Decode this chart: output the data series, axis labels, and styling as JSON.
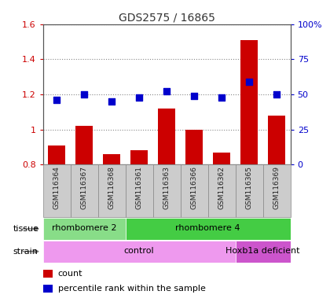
{
  "title": "GDS2575 / 16865",
  "samples": [
    "GSM116364",
    "GSM116367",
    "GSM116368",
    "GSM116361",
    "GSM116363",
    "GSM116366",
    "GSM116362",
    "GSM116365",
    "GSM116369"
  ],
  "counts": [
    0.91,
    1.02,
    0.86,
    0.88,
    1.12,
    1.0,
    0.87,
    1.51,
    1.08
  ],
  "percentile_left": [
    1.17,
    1.2,
    1.16,
    1.18,
    1.22,
    1.19,
    1.18,
    1.27,
    1.2
  ],
  "ylim_left": [
    0.8,
    1.6
  ],
  "ylim_right": [
    0,
    100
  ],
  "yticks_left": [
    0.8,
    1.0,
    1.2,
    1.4,
    1.6
  ],
  "ytick_labels_left": [
    "0.8",
    "1",
    "1.2",
    "1.4",
    "1.6"
  ],
  "yticks_right": [
    0,
    25,
    50,
    75,
    100
  ],
  "ytick_labels_right": [
    "0",
    "25",
    "50",
    "75",
    "100%"
  ],
  "bar_color": "#cc0000",
  "dot_color": "#0000cc",
  "tissue_labels": [
    {
      "text": "rhombomere 2",
      "start": 0,
      "end": 3,
      "color": "#88dd88"
    },
    {
      "text": "rhombomere 4",
      "start": 3,
      "end": 9,
      "color": "#44cc44"
    }
  ],
  "strain_labels": [
    {
      "text": "control",
      "start": 0,
      "end": 7,
      "color": "#ee99ee"
    },
    {
      "text": "Hoxb1a deficient",
      "start": 7,
      "end": 9,
      "color": "#cc55cc"
    }
  ],
  "tissue_row_label": "tissue",
  "strain_row_label": "strain",
  "legend_count_label": "count",
  "legend_pct_label": "percentile rank within the sample",
  "sample_bg": "#cccccc",
  "sample_text_color": "#222222"
}
